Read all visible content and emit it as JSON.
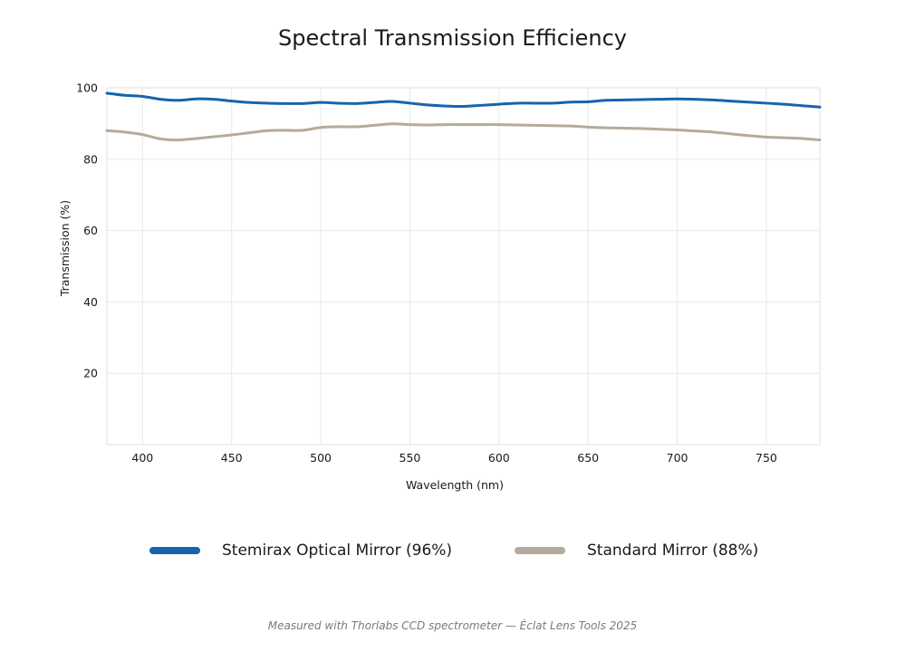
{
  "chart_data": {
    "type": "line",
    "title": "Spectral Transmission Efficiency",
    "xlabel": "Wavelength (nm)",
    "ylabel": "Transmission (%)",
    "xlim": [
      380,
      780
    ],
    "ylim": [
      0,
      100
    ],
    "x_ticks": [
      400,
      450,
      500,
      550,
      600,
      650,
      700,
      750
    ],
    "y_ticks": [
      20,
      40,
      60,
      80,
      100
    ],
    "grid": true,
    "legend_position": "bottom",
    "x": [
      380,
      390,
      400,
      410,
      420,
      430,
      440,
      450,
      460,
      470,
      480,
      490,
      500,
      510,
      520,
      530,
      540,
      550,
      560,
      570,
      580,
      590,
      600,
      610,
      620,
      630,
      640,
      650,
      660,
      670,
      680,
      690,
      700,
      710,
      720,
      730,
      740,
      750,
      760,
      770,
      780
    ],
    "series": [
      {
        "name": "Stemirax Optical Mirror (96%)",
        "color": "#1764ad",
        "values": [
          98.5,
          97.9,
          97.6,
          96.8,
          96.5,
          96.9,
          96.8,
          96.3,
          95.9,
          95.7,
          95.6,
          95.6,
          95.9,
          95.7,
          95.6,
          95.9,
          96.2,
          95.7,
          95.2,
          94.9,
          94.8,
          95.1,
          95.4,
          95.7,
          95.7,
          95.7,
          96.0,
          96.1,
          96.5,
          96.6,
          96.7,
          96.8,
          96.9,
          96.8,
          96.6,
          96.3,
          96.0,
          95.7,
          95.4,
          95.0,
          94.6
        ]
      },
      {
        "name": "Standard Mirror (88%)",
        "color": "#b5aa9c",
        "values": [
          88.0,
          87.6,
          86.9,
          85.7,
          85.4,
          85.8,
          86.3,
          86.8,
          87.4,
          88.0,
          88.1,
          88.1,
          88.9,
          89.1,
          89.1,
          89.5,
          89.9,
          89.7,
          89.6,
          89.7,
          89.7,
          89.7,
          89.7,
          89.6,
          89.5,
          89.4,
          89.3,
          89.0,
          88.8,
          88.7,
          88.6,
          88.4,
          88.2,
          87.9,
          87.6,
          87.1,
          86.6,
          86.2,
          86.0,
          85.8,
          85.4
        ]
      }
    ]
  },
  "footer": {
    "note": "Measured with Thorlabs CCD spectrometer  —  Éclat Lens Tools 2025"
  }
}
